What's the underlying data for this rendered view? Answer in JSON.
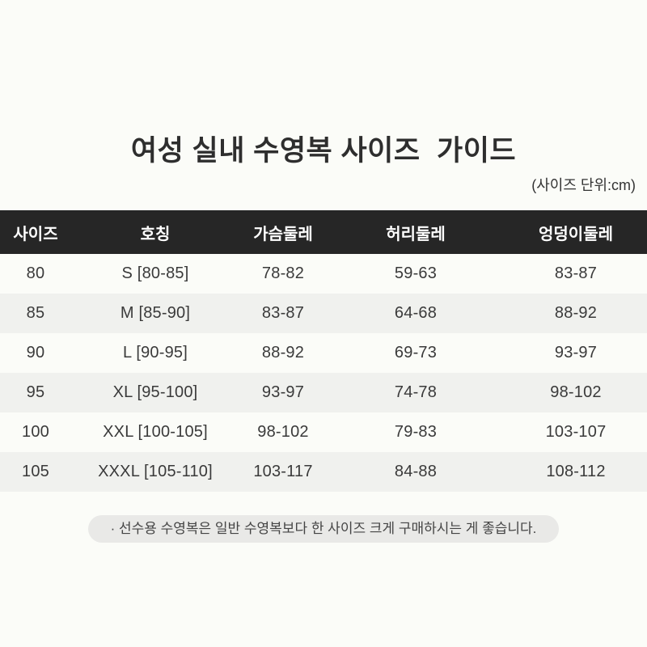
{
  "page": {
    "title": "여성 실내 수영복 사이즈  가이드",
    "unit_note": "(사이즈 단위:cm)",
    "footnote": "· 선수용 수영복은 일반 수영복보다 한 사이즈 크게 구매하시는 게 좋습니다."
  },
  "table": {
    "columns": [
      "사이즈",
      "호칭",
      "가슴둘레",
      "허리둘레",
      "엉덩이둘레"
    ],
    "rows": [
      [
        "80",
        "S [80-85]",
        "78-82",
        "59-63",
        "83-87"
      ],
      [
        "85",
        "M [85-90]",
        "83-87",
        "64-68",
        "88-92"
      ],
      [
        "90",
        "L [90-95]",
        "88-92",
        "69-73",
        "93-97"
      ],
      [
        "95",
        "XL [95-100]",
        "93-97",
        "74-78",
        "98-102"
      ],
      [
        "100",
        "XXL [100-105]",
        "98-102",
        "79-83",
        "103-107"
      ],
      [
        "105",
        "XXXL [105-110]",
        "103-117",
        "84-88",
        "108-112"
      ]
    ]
  },
  "colors": {
    "background": "#fbfcf8",
    "header_bg": "#262626",
    "header_text": "#ffffff",
    "row_alt_bg": "#f0f1ee",
    "note_pill_bg": "#e9e9e7",
    "title_text": "#2e2e2e",
    "body_text": "#3a3a3a"
  }
}
